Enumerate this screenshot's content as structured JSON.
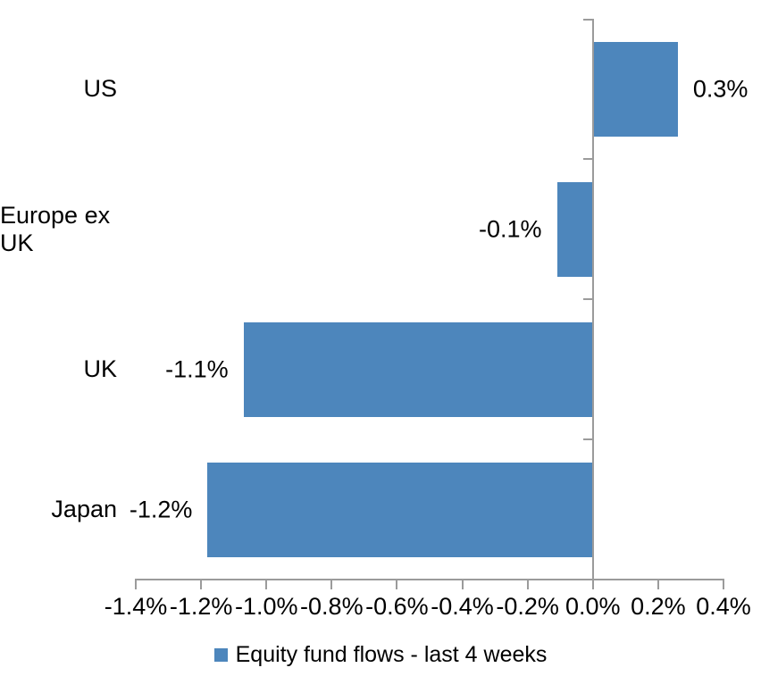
{
  "chart_data": {
    "type": "bar",
    "orientation": "horizontal",
    "series_name": "Equity fund flows - last 4 weeks",
    "categories": [
      "US",
      "Europe ex UK",
      "UK",
      "Japan"
    ],
    "values": [
      0.26,
      -0.11,
      -1.07,
      -1.18
    ],
    "data_labels": [
      "0.3%",
      "-0.1%",
      "-1.1%",
      "-1.2%"
    ],
    "xlim": [
      -1.4,
      0.4
    ],
    "x_tick_step": 0.2,
    "x_tick_labels": [
      "-1.4%",
      "-1.2%",
      "-1.0%",
      "-0.8%",
      "-0.6%",
      "-0.4%",
      "-0.2%",
      "0.0%",
      "0.2%",
      "0.4%"
    ],
    "grid": false,
    "legend_position": "bottom",
    "data_label_position": "outside-end",
    "colors": {
      "bar": "#4D86BC",
      "axis": "#9B9B9B",
      "text": "#000000"
    }
  }
}
